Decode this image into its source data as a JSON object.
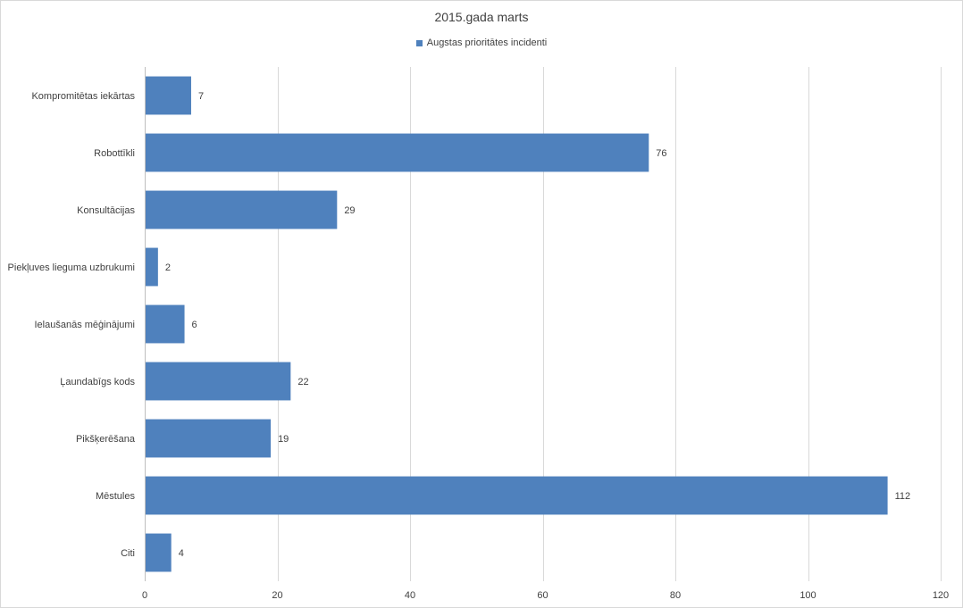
{
  "chart_data": {
    "type": "bar",
    "orientation": "horizontal",
    "title": "2015.gada marts",
    "categories": [
      "Kompromitētas iekārtas",
      "Robottīkli",
      "Konsultācijas",
      "Piekļuves lieguma uzbrukumi",
      "Ielaušanās mēģinājumi",
      "Ļaundabīgs kods",
      "Pikšķerēšana",
      "Mēstules",
      "Citi"
    ],
    "series": [
      {
        "name": "Augstas prioritātes incidenti",
        "values": [
          7,
          76,
          29,
          2,
          6,
          22,
          19,
          112,
          4
        ],
        "color": "#4f81bd"
      }
    ],
    "xlim": [
      0,
      120
    ],
    "xticks": [
      0,
      20,
      40,
      60,
      80,
      100,
      120
    ],
    "grid": true,
    "legend_position": "top",
    "data_labels": true
  }
}
